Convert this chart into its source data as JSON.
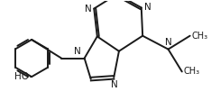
{
  "bg_color": "#ffffff",
  "line_color": "#1a1a1a",
  "line_width": 1.4,
  "font_size": 7.5,
  "font_family": "DejaVu Sans",
  "figsize": [
    2.44,
    1.22
  ],
  "dpi": 100,
  "xlim": [
    -2.3,
    3.9
  ],
  "ylim": [
    -1.6,
    1.8
  ]
}
